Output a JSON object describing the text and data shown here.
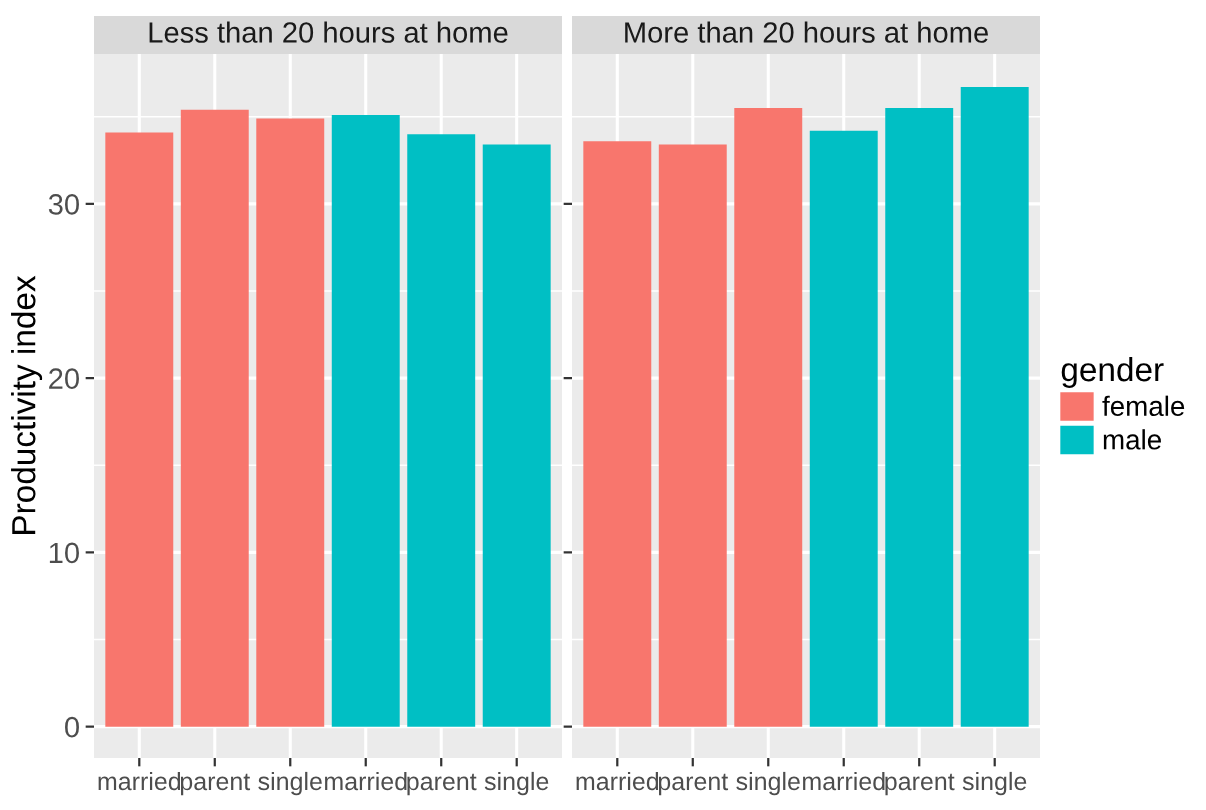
{
  "chart_data": [
    {
      "type": "bar",
      "title": "Less than 20 hours at home",
      "ylabel": "Productivity index",
      "categories": [
        "married",
        "parent",
        "single",
        "married",
        "parent",
        "single"
      ],
      "series": [
        {
          "color": "#f8766d",
          "values": [
            34.1,
            35.4,
            34.9,
            null,
            null,
            null
          ]
        },
        {
          "color": "#00bfc4",
          "values": [
            null,
            null,
            null,
            35.1,
            34.0,
            33.4
          ]
        }
      ],
      "ylim": [
        -1.8,
        38.6
      ],
      "yticks": [
        0,
        10,
        20,
        30
      ],
      "grid": true
    },
    {
      "type": "bar",
      "title": "More than 20 hours at home",
      "categories": [
        "married",
        "parent",
        "single",
        "married",
        "parent",
        "single"
      ],
      "series": [
        {
          "name": "female",
          "color": "#f8766d",
          "values": [
            33.6,
            33.4,
            35.5,
            null,
            null,
            null
          ]
        },
        {
          "name": "male",
          "color": "#00bfc4",
          "values": [
            null,
            null,
            null,
            34.2,
            35.5,
            36.7
          ]
        }
      ],
      "ylim": [
        -1.8,
        38.6
      ],
      "yticks": [
        0,
        10,
        20,
        30
      ],
      "grid": true,
      "legend": "right",
      "legend_title": "gender",
      "tick_labels": "x"
    }
  ]
}
